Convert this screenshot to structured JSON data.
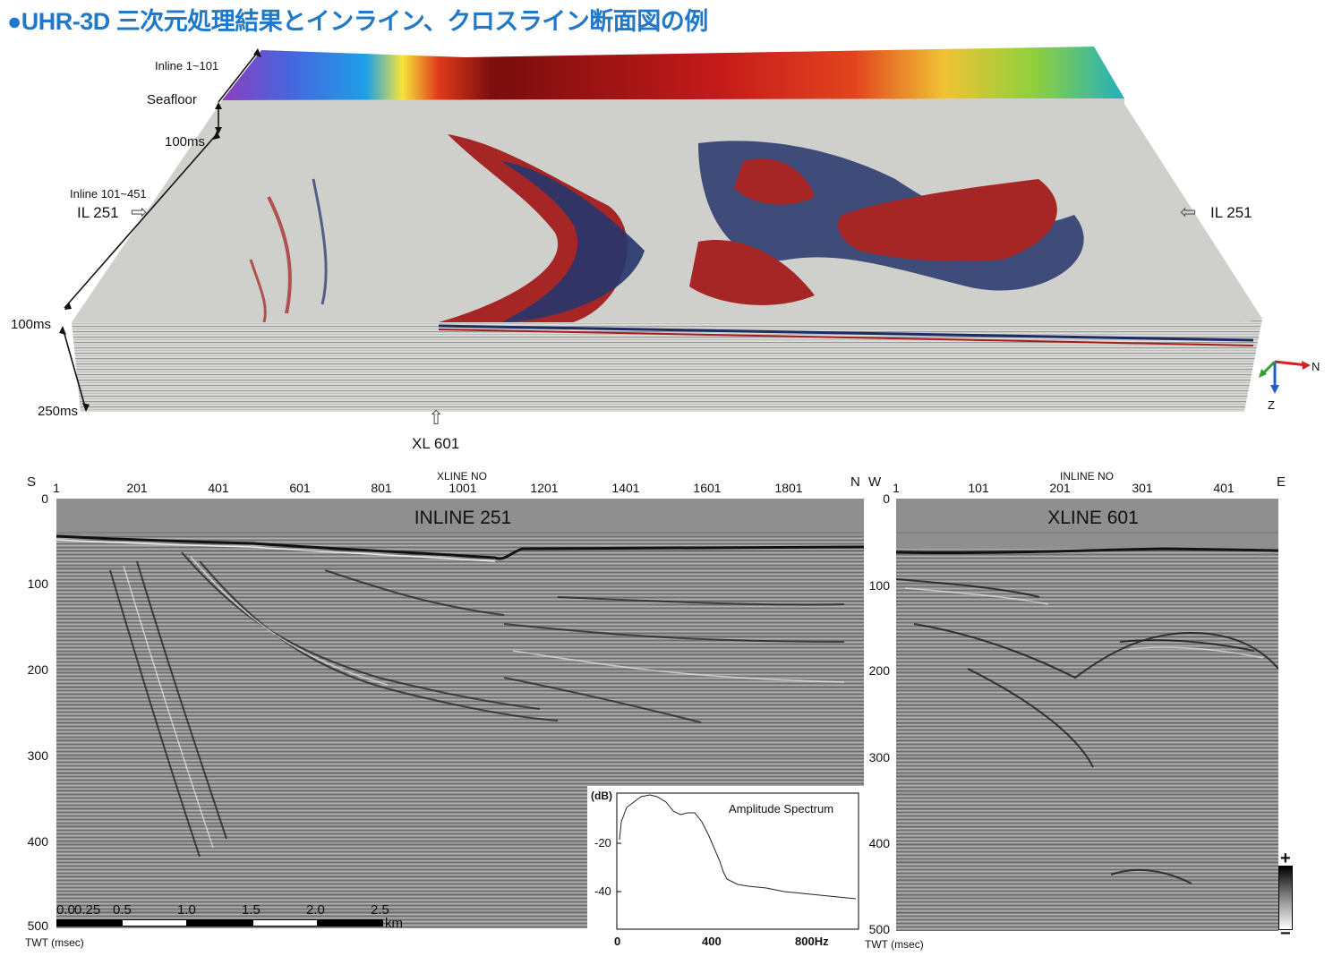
{
  "title": "●UHR-3D 三次元処理結果とインライン、クロスライン断面図の例",
  "cube": {
    "labels": {
      "inline_top": "Inline 1~101",
      "seafloor": "Seafloor",
      "ms100_top": "100ms",
      "inline_range": "Inline 101~451",
      "il251_left": "IL 251",
      "il251_right": "IL 251",
      "ms100_left": "100ms",
      "ms250": "250ms",
      "xl601": "XL 601"
    },
    "axes": {
      "n": "N",
      "z": "Z"
    }
  },
  "inline_panel": {
    "title": "INLINE 251",
    "axis_title": "XLINE NO",
    "left_dir": "S",
    "right_dir": "N",
    "ticks": [
      "1",
      "201",
      "401",
      "601",
      "801",
      "1001",
      "1201",
      "1401",
      "1601",
      "1801"
    ],
    "y_ticks": [
      "0",
      "100",
      "200",
      "300",
      "400",
      "500"
    ],
    "y_label": "TWT (msec)",
    "scale_ticks": [
      "0.0",
      "0.25",
      "0.5",
      "1.0",
      "1.5",
      "2.0",
      "2.5"
    ],
    "scale_unit": "km"
  },
  "spectrum": {
    "title": "Amplitude Spectrum",
    "y_unit": "(dB)",
    "y_ticks": [
      "-20",
      "-40"
    ],
    "x_ticks": [
      "0",
      "400",
      "800Hz"
    ]
  },
  "xline_panel": {
    "title": "XLINE 601",
    "axis_title": "INLINE NO",
    "left_dir": "W",
    "right_dir": "E",
    "ticks": [
      "1",
      "101",
      "201",
      "301",
      "401"
    ],
    "y_ticks": [
      "0",
      "100",
      "200",
      "300",
      "400",
      "500"
    ],
    "y_label": "TWT (msec)"
  },
  "colorbar": {
    "plus": "+",
    "minus": "−"
  }
}
